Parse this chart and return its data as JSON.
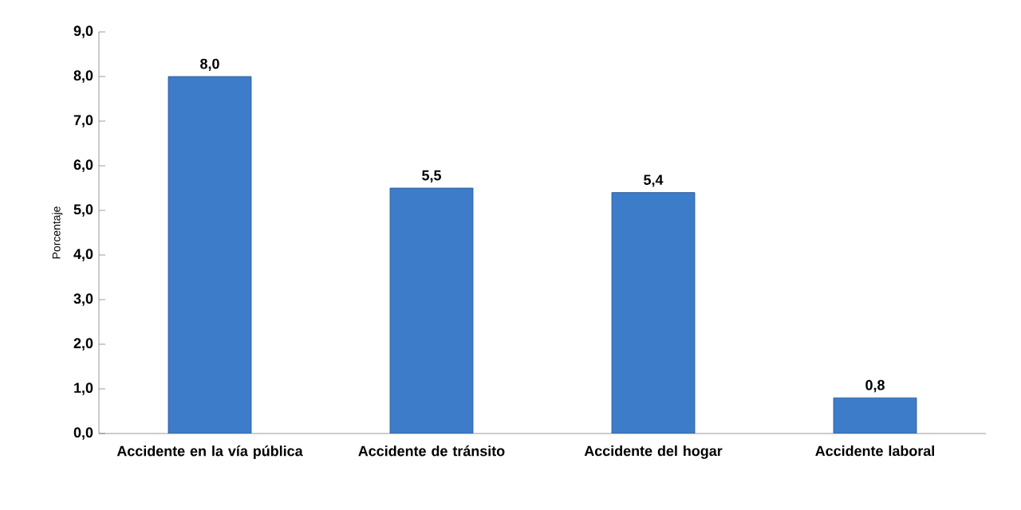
{
  "chart_data": {
    "type": "bar",
    "ylabel": "Porcentaje",
    "categories": [
      "Accidente en la vía pública",
      "Accidente de tránsito",
      "Accidente del hogar",
      "Accidente laboral"
    ],
    "values": [
      8.0,
      5.5,
      5.4,
      0.8
    ],
    "value_labels": [
      "8,0",
      "5,5",
      "5,4",
      "0,8"
    ],
    "color": "#3d7cc9",
    "ylim": [
      0,
      9
    ],
    "yticks": [
      {
        "value": 0,
        "label": "0,0"
      },
      {
        "value": 1,
        "label": "1,0"
      },
      {
        "value": 2,
        "label": "2,0"
      },
      {
        "value": 3,
        "label": "3,0"
      },
      {
        "value": 4,
        "label": "4,0"
      },
      {
        "value": 5,
        "label": "5,0"
      },
      {
        "value": 6,
        "label": "6,0"
      },
      {
        "value": 7,
        "label": "7,0"
      },
      {
        "value": 8,
        "label": "8,0"
      },
      {
        "value": 9,
        "label": "9,0"
      }
    ],
    "grid": false
  }
}
